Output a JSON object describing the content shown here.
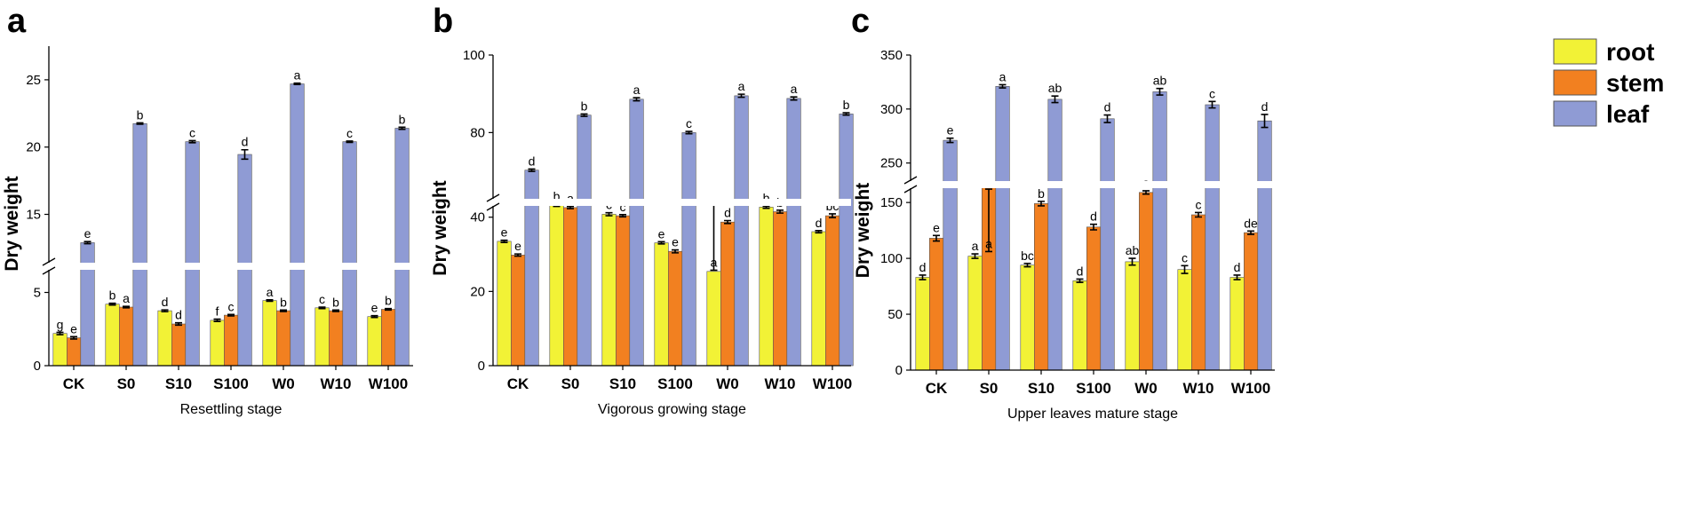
{
  "colors": {
    "root": "#F2F236",
    "stem": "#F28020",
    "leaf": "#8F9BD4"
  },
  "legend": [
    {
      "key": "root",
      "label": "root"
    },
    {
      "key": "stem",
      "label": "stem"
    },
    {
      "key": "leaf",
      "label": "leaf"
    }
  ],
  "chart_data": [
    {
      "type": "bar",
      "panel_label": "a",
      "title": "",
      "xlabel": "Resettling stage",
      "ylabel": "Dry weight",
      "categories": [
        "CK",
        "S0",
        "S10",
        "S100",
        "W0",
        "W10",
        "W100"
      ],
      "axis_break": {
        "lower_range": [
          0,
          6
        ],
        "upper_range": [
          12,
          27.5
        ]
      },
      "yticks_lower": [
        "0",
        "5"
      ],
      "yticks_upper": [
        "15",
        "20",
        "25"
      ],
      "series": [
        {
          "name": "root",
          "values": [
            2.2,
            4.2,
            3.75,
            3.1,
            4.45,
            3.95,
            3.35
          ],
          "errors": [
            0.08,
            0.06,
            0.06,
            0.08,
            0.05,
            0.05,
            0.06
          ],
          "letters": [
            "g",
            "b",
            "d",
            "f",
            "a",
            "c",
            "e"
          ]
        },
        {
          "name": "stem",
          "values": [
            1.9,
            4.0,
            2.85,
            3.45,
            3.75,
            3.75,
            3.85
          ],
          "errors": [
            0.08,
            0.05,
            0.08,
            0.05,
            0.05,
            0.05,
            0.05
          ],
          "letters": [
            "e",
            "a",
            "d",
            "c",
            "b",
            "b",
            "b"
          ]
        },
        {
          "name": "leaf",
          "values": [
            12.9,
            21.75,
            20.4,
            19.45,
            24.7,
            20.4,
            21.4
          ],
          "errors": [
            0.08,
            0.05,
            0.08,
            0.35,
            0.05,
            0.05,
            0.08
          ],
          "letters": [
            "e",
            "b",
            "c",
            "d",
            "a",
            "c",
            "b"
          ]
        }
      ]
    },
    {
      "type": "bar",
      "panel_label": "b",
      "title": "",
      "xlabel": "Vigorous growing stage",
      "ylabel": "Dry weight",
      "categories": [
        "CK",
        "S0",
        "S10",
        "S100",
        "W0",
        "W10",
        "W100"
      ],
      "axis_break": {
        "lower_range": [
          0,
          44
        ],
        "upper_range": [
          62,
          100
        ]
      },
      "yticks_lower": [
        "0",
        "20",
        "40"
      ],
      "yticks_upper": [
        "80",
        "100"
      ],
      "series": [
        {
          "name": "root",
          "values": [
            33.5,
            43.2,
            40.8,
            33.1,
            44.2,
            42.7,
            36.1
          ],
          "errors": [
            0.3,
            0.3,
            0.4,
            0.3,
            0.3,
            0.3,
            0.3
          ],
          "letters": [
            "e",
            "b",
            "c",
            "e",
            "a",
            "b",
            "d"
          ]
        },
        {
          "name": "stem",
          "values": [
            29.8,
            42.6,
            40.4,
            30.8,
            38.7,
            41.5,
            40.4
          ],
          "errors": [
            0.3,
            0.3,
            0.3,
            0.4,
            0.4,
            0.4,
            0.5
          ],
          "letters": [
            "e",
            "a",
            "c",
            "e",
            "d",
            "b",
            "bc"
          ]
        },
        {
          "name": "leaf",
          "values": [
            70.3,
            84.5,
            88.6,
            80.0,
            89.5,
            88.8,
            84.8
          ],
          "errors": [
            0.3,
            0.3,
            0.4,
            0.3,
            0.4,
            0.4,
            0.3
          ],
          "letters": [
            "d",
            "b",
            "a",
            "c",
            "a",
            "a",
            "b"
          ]
        }
      ]
    },
    {
      "type": "bar",
      "panel_label": "c",
      "title": "",
      "xlabel": "Upper leaves mature stage",
      "ylabel": "Dry weight",
      "categories": [
        "CK",
        "S0",
        "S10",
        "S100",
        "W0",
        "W10",
        "W100"
      ],
      "axis_break": {
        "lower_range": [
          0,
          166
        ],
        "upper_range": [
          230,
          350
        ]
      },
      "yticks_lower": [
        "0",
        "50",
        "100",
        "150"
      ],
      "yticks_upper": [
        "250",
        "300",
        "350"
      ],
      "series": [
        {
          "name": "root",
          "values": [
            83,
            102,
            94,
            80,
            97,
            90,
            83
          ],
          "errors": [
            2,
            2,
            1.5,
            1.5,
            3,
            3.5,
            2
          ],
          "letters": [
            "d",
            "a",
            "bc",
            "d",
            "ab",
            "c",
            "d"
          ]
        },
        {
          "name": "stem",
          "values": [
            118,
            165,
            149,
            128,
            159,
            139,
            123
          ],
          "errors": [
            2.5,
            3,
            2,
            2.5,
            1.5,
            2,
            1.5
          ],
          "letters": [
            "e",
            "a",
            "b",
            "d",
            "a",
            "c",
            "de"
          ]
        },
        {
          "name": "leaf",
          "values": [
            271,
            321,
            309,
            291,
            316,
            304,
            289
          ],
          "errors": [
            2,
            1.5,
            3,
            3.5,
            3,
            3,
            6
          ],
          "letters": [
            "e",
            "a",
            "ab",
            "d",
            "ab",
            "c",
            "d"
          ]
        }
      ]
    }
  ]
}
